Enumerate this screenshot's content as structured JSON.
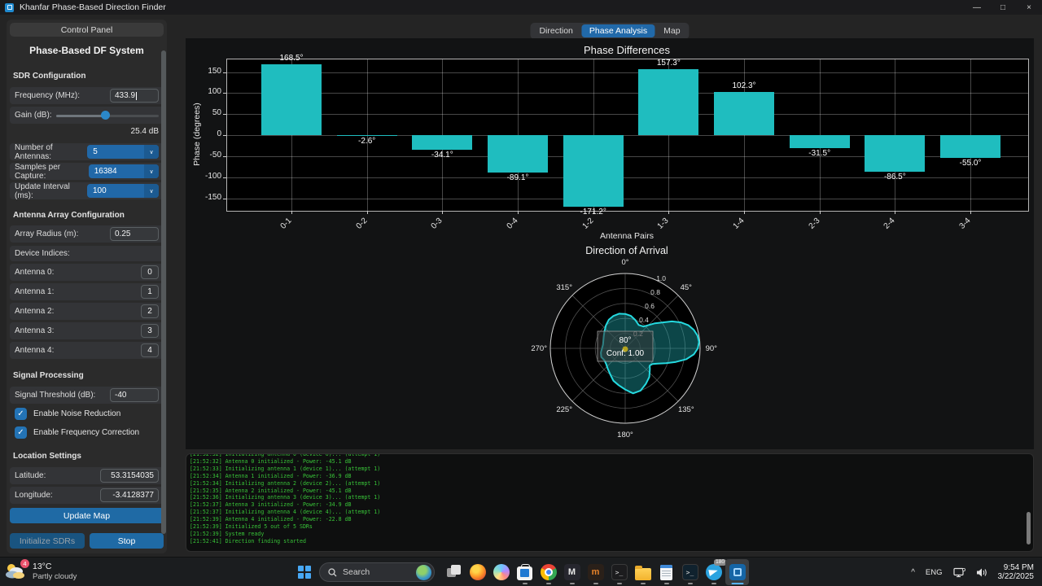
{
  "window": {
    "title": "Khanfar Phase-Based Direction Finder",
    "minimize": "—",
    "maximize": "□",
    "close": "×"
  },
  "sidebar": {
    "panel_title": "Control Panel",
    "heading": "Phase-Based DF System",
    "sdr_section": "SDR Configuration",
    "frequency_label": "Frequency (MHz):",
    "frequency_value": "433.9",
    "gain_label": "Gain (dB):",
    "gain_value": "25.4 dB",
    "antennas_label": "Number of Antennas:",
    "antennas_value": "5",
    "samples_label": "Samples per Capture:",
    "samples_value": "16384",
    "interval_label": "Update Interval (ms):",
    "interval_value": "100",
    "array_section": "Antenna Array Configuration",
    "radius_label": "Array Radius (m):",
    "radius_value": "0.25",
    "device_indices_label": "Device Indices:",
    "antenna_rows": [
      {
        "label": "Antenna 0:",
        "value": "0"
      },
      {
        "label": "Antenna 1:",
        "value": "1"
      },
      {
        "label": "Antenna 2:",
        "value": "2"
      },
      {
        "label": "Antenna 3:",
        "value": "3"
      },
      {
        "label": "Antenna 4:",
        "value": "4"
      }
    ],
    "signal_section": "Signal Processing",
    "threshold_label": "Signal Threshold (dB):",
    "threshold_value": "-40",
    "noise_checkbox": "Enable Noise Reduction",
    "freq_corr_checkbox": "Enable Frequency Correction",
    "check_glyph": "✓",
    "dropdown_chevron": "∨",
    "location_section": "Location Settings",
    "latitude_label": "Latitude:",
    "latitude_value": "53.3154035",
    "longitude_label": "Longitude:",
    "longitude_value": "-3.4128377",
    "update_map_button": "Update Map",
    "initialize_button": "Initialize SDRs",
    "stop_button": "Stop"
  },
  "tabs": [
    {
      "label": "Direction",
      "active": false
    },
    {
      "label": "Phase Analysis",
      "active": true
    },
    {
      "label": "Map",
      "active": false
    }
  ],
  "chart_data": [
    {
      "type": "bar",
      "title": "Phase Differences",
      "xlabel": "Antenna Pairs",
      "ylabel": "Phase (degrees)",
      "ylim": [
        -180,
        180
      ],
      "yticks": [
        150,
        100,
        50,
        0,
        -50,
        -100,
        -150
      ],
      "grid": true,
      "bar_color": "#1fbdbf",
      "categories": [
        "0-1",
        "0-2",
        "0-3",
        "0-4",
        "1-2",
        "1-3",
        "1-4",
        "2-3",
        "2-4",
        "3-4"
      ],
      "values": [
        168.5,
        -2.6,
        -34.1,
        -89.1,
        -171.2,
        157.3,
        102.3,
        -31.5,
        -86.5,
        -55.0
      ],
      "bar_labels": [
        "168.5°",
        "-2.6°",
        "-34.1°",
        "-89.1°",
        "-171.2°",
        "157.3°",
        "102.3°",
        "-31.5°",
        "-86.5°",
        "-55.0°"
      ]
    },
    {
      "type": "polar",
      "title": "Direction of Arrival",
      "angle_tick_degs": [
        0,
        45,
        90,
        135,
        180,
        225,
        270,
        315
      ],
      "angle_tick_labels": [
        "0°",
        "45°",
        "90°",
        "135°",
        "180°",
        "225°",
        "270°",
        "315°"
      ],
      "radial_ticks": [
        0.2,
        0.4,
        0.6,
        0.8,
        1.0
      ],
      "beam_color": "#25d9df",
      "beam_fill": "rgba(32,185,188,0.38)",
      "annotation": {
        "bearing": "80°",
        "confidence": "Conf: 1.00",
        "dot_color": "#b3a41f"
      },
      "beam": [
        [
          0,
          0.46
        ],
        [
          10,
          0.44
        ],
        [
          20,
          0.4
        ],
        [
          30,
          0.36
        ],
        [
          40,
          0.38
        ],
        [
          50,
          0.52
        ],
        [
          60,
          0.72
        ],
        [
          65,
          0.82
        ],
        [
          70,
          0.9
        ],
        [
          75,
          0.95
        ],
        [
          80,
          0.98
        ],
        [
          85,
          0.99
        ],
        [
          90,
          0.97
        ],
        [
          95,
          0.92
        ],
        [
          100,
          0.83
        ],
        [
          105,
          0.7
        ],
        [
          110,
          0.58
        ],
        [
          115,
          0.48
        ],
        [
          120,
          0.42
        ],
        [
          125,
          0.4
        ],
        [
          130,
          0.43
        ],
        [
          140,
          0.5
        ],
        [
          150,
          0.55
        ],
        [
          160,
          0.6
        ],
        [
          170,
          0.61
        ],
        [
          180,
          0.55
        ],
        [
          190,
          0.5
        ],
        [
          200,
          0.46
        ],
        [
          210,
          0.4
        ],
        [
          220,
          0.36
        ],
        [
          230,
          0.33
        ],
        [
          240,
          0.32
        ],
        [
          250,
          0.34
        ],
        [
          260,
          0.33
        ],
        [
          270,
          0.31
        ],
        [
          280,
          0.3
        ],
        [
          290,
          0.31
        ],
        [
          300,
          0.33
        ],
        [
          310,
          0.36
        ],
        [
          320,
          0.4
        ],
        [
          330,
          0.44
        ],
        [
          340,
          0.46
        ],
        [
          350,
          0.47
        ]
      ]
    }
  ],
  "log": {
    "lines": [
      "[21:52:32] Initializing antenna 0 (device 0)... (attempt 1)",
      "[21:52:32] Antenna 0 initialized - Power: -45.1 dB",
      "[21:52:33] Initializing antenna 1 (device 1)... (attempt 1)",
      "[21:52:34] Antenna 1 initialized - Power: -36.9 dB",
      "[21:52:34] Initializing antenna 2 (device 2)... (attempt 1)",
      "[21:52:35] Antenna 2 initialized - Power: -45.1 dB",
      "[21:52:36] Initializing antenna 3 (device 3)... (attempt 1)",
      "[21:52:37] Antenna 3 initialized - Power: -34.9 dB",
      "[21:52:37] Initializing antenna 4 (device 4)... (attempt 1)",
      "[21:52:39] Antenna 4 initialized - Power: -22.8 dB",
      "[21:52:39] Initialized 5 out of 5 SDRs",
      "[21:52:39] System ready",
      "[21:52:41] Direction finding started"
    ]
  },
  "taskbar": {
    "weather": {
      "badge": "4",
      "temp": "13°C",
      "condition": "Partly cloudy"
    },
    "search_placeholder": "Search",
    "glyphs": {
      "m_app": "M",
      "metamask": "m",
      "terminal": ">_",
      "powershell": ">_"
    },
    "telegram_badge": "180",
    "tray": {
      "chevron": "^",
      "language": "ENG",
      "time": "9:54 PM",
      "date": "3/22/2025"
    }
  }
}
